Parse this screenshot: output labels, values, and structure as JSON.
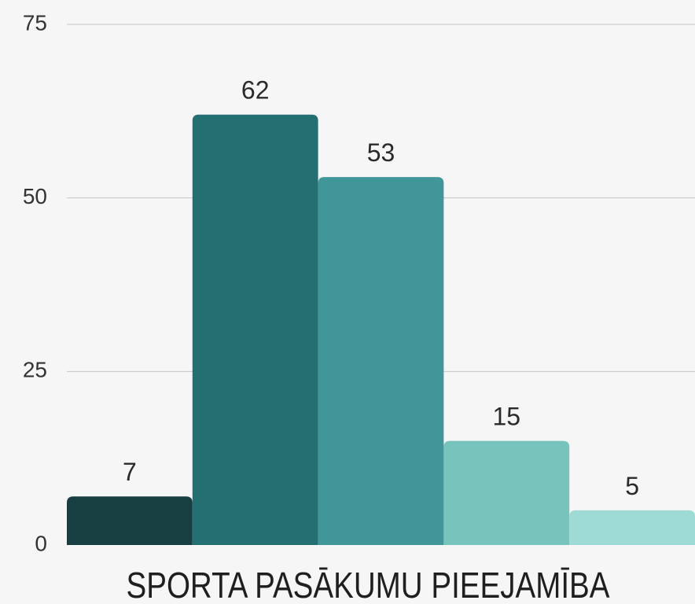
{
  "chart_data": {
    "type": "bar",
    "title": "SPORTA PASĀKUMU PIEEJAMĪBA",
    "categories": [
      null,
      null,
      null,
      null,
      null
    ],
    "values": [
      7,
      62,
      53,
      15,
      5
    ],
    "colors": [
      "#173f42",
      "#236f72",
      "#41969a",
      "#76c4bb",
      "#9fdbd5"
    ],
    "ylim": [
      0,
      75
    ],
    "yticks": [
      0,
      25,
      50,
      75
    ],
    "grid": true
  }
}
